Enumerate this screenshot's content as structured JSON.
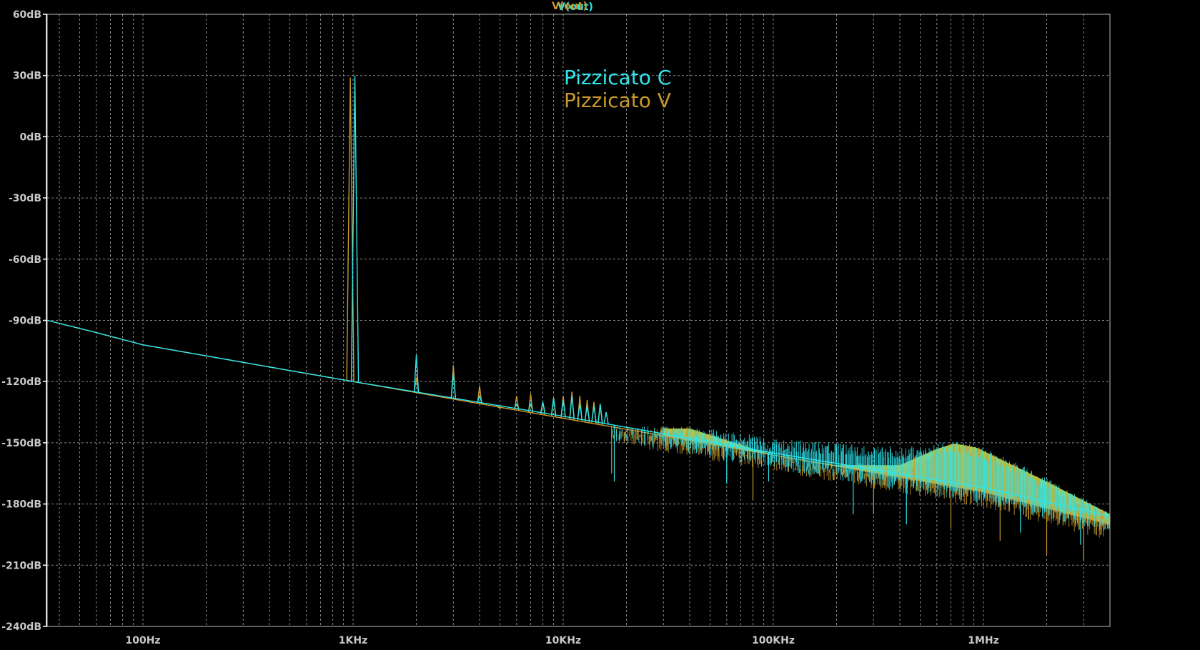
{
  "window": {
    "trace_titles": [
      "V(out)",
      "V(out)"
    ]
  },
  "colors": {
    "background": "#000000",
    "grid": "#8a8a8a",
    "frame": "#bdbdbd",
    "tick_text": "#c8c8c8",
    "series_c": "#2ee6ee",
    "series_v": "#c9992a",
    "overlap_fill": "#c8d84a"
  },
  "chart_data": {
    "type": "line",
    "title": "",
    "xscale": "log",
    "xlim_hz": [
      35,
      4000000
    ],
    "ylim_db": [
      -240,
      60
    ],
    "grid": true,
    "x_ticks": [
      {
        "value": 100,
        "label": "100Hz"
      },
      {
        "value": 1000,
        "label": "1KHz"
      },
      {
        "value": 10000,
        "label": "10KHz"
      },
      {
        "value": 100000,
        "label": "100KHz"
      },
      {
        "value": 1000000,
        "label": "1MHz"
      }
    ],
    "y_ticks": [
      {
        "value": 60,
        "label": "60dB"
      },
      {
        "value": 30,
        "label": "30dB"
      },
      {
        "value": 0,
        "label": "0dB"
      },
      {
        "value": -30,
        "label": "-30dB"
      },
      {
        "value": -60,
        "label": "-60dB"
      },
      {
        "value": -90,
        "label": "-90dB"
      },
      {
        "value": -120,
        "label": "-120dB"
      },
      {
        "value": -150,
        "label": "-150dB"
      },
      {
        "value": -180,
        "label": "-180dB"
      },
      {
        "value": -210,
        "label": "-210dB"
      },
      {
        "value": -240,
        "label": "-240dB"
      }
    ],
    "annotations": [
      {
        "text": "Pizzicato C",
        "series": "c"
      },
      {
        "text": "Pizzicato V",
        "series": "v"
      }
    ],
    "series": [
      {
        "id": "c",
        "name": "Pizzicato C",
        "floor": [
          [
            35,
            -90
          ],
          [
            60,
            -96
          ],
          [
            100,
            -102
          ],
          [
            1000,
            -120
          ],
          [
            10000,
            -137
          ],
          [
            100000,
            -155
          ],
          [
            1000000,
            -172
          ],
          [
            4000000,
            -186
          ]
        ],
        "peaks": [
          [
            1020,
            30
          ],
          [
            2000,
            -107
          ],
          [
            3000,
            -116
          ],
          [
            4000,
            -127
          ],
          [
            5000,
            -132
          ],
          [
            6000,
            -131
          ],
          [
            7000,
            -131
          ],
          [
            8000,
            -130
          ],
          [
            9000,
            -128
          ],
          [
            10000,
            -129
          ],
          [
            11000,
            -127
          ],
          [
            12000,
            -131
          ],
          [
            13000,
            -132
          ],
          [
            14000,
            -132
          ],
          [
            15000,
            -131
          ],
          [
            16000,
            -135
          ]
        ],
        "envelope_top": [
          [
            40000,
            -142
          ],
          [
            70000,
            -145
          ],
          [
            100000,
            -148
          ],
          [
            200000,
            -150
          ],
          [
            400000,
            -152
          ],
          [
            700000,
            -149
          ],
          [
            1000000,
            -152
          ],
          [
            2000000,
            -167
          ],
          [
            4000000,
            -184
          ]
        ],
        "dips": [
          [
            17500,
            -169
          ],
          [
            60000,
            -170
          ],
          [
            95000,
            -169
          ],
          [
            240000,
            -185
          ],
          [
            430000,
            -190
          ],
          [
            1500000,
            -194
          ],
          [
            2900000,
            -200
          ]
        ]
      },
      {
        "id": "v",
        "name": "Pizzicato V",
        "floor": [
          [
            35,
            -90
          ],
          [
            60,
            -96
          ],
          [
            100,
            -102
          ],
          [
            1000,
            -120
          ],
          [
            10000,
            -138
          ],
          [
            100000,
            -156
          ],
          [
            1000000,
            -174
          ],
          [
            4000000,
            -190
          ]
        ],
        "peaks": [
          [
            970,
            29
          ],
          [
            2000,
            -118
          ],
          [
            3000,
            -112
          ],
          [
            4000,
            -122
          ],
          [
            5000,
            -133
          ],
          [
            6000,
            -127
          ],
          [
            7000,
            -126
          ],
          [
            8000,
            -130
          ],
          [
            9000,
            -128
          ],
          [
            10000,
            -127
          ],
          [
            11000,
            -125
          ],
          [
            12000,
            -127
          ],
          [
            13000,
            -129
          ],
          [
            14000,
            -130
          ],
          [
            15000,
            -131
          ]
        ],
        "envelope_top": [
          [
            40000,
            -142
          ],
          [
            70000,
            -150
          ],
          [
            100000,
            -155
          ],
          [
            200000,
            -160
          ],
          [
            400000,
            -160
          ],
          [
            600000,
            -152
          ],
          [
            800000,
            -148
          ],
          [
            1000000,
            -153
          ],
          [
            2000000,
            -168
          ],
          [
            4000000,
            -184
          ]
        ],
        "dips": [
          [
            17000,
            -165
          ],
          [
            80000,
            -178
          ],
          [
            300000,
            -185
          ],
          [
            700000,
            -192
          ],
          [
            1200000,
            -198
          ],
          [
            2000000,
            -205
          ],
          [
            3000000,
            -208
          ]
        ]
      }
    ]
  }
}
